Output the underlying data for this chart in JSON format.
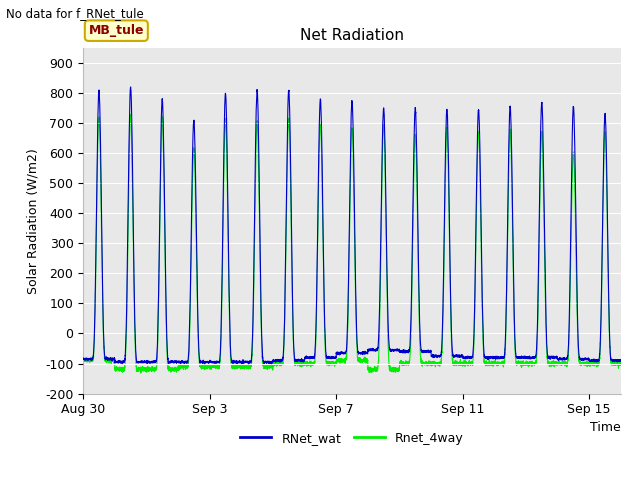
{
  "title": "Net Radiation",
  "no_data_text": "No data for f_RNet_tule",
  "xlabel": "Time",
  "ylabel": "Solar Radiation (W/m2)",
  "ylim": [
    -200,
    950
  ],
  "yticks": [
    -200,
    -100,
    0,
    100,
    200,
    300,
    400,
    500,
    600,
    700,
    800,
    900
  ],
  "bg_color": "#e8e8e8",
  "fig_color": "#ffffff",
  "line1_color": "#0000cc",
  "line2_color": "#00ee00",
  "legend_entries": [
    "RNet_wat",
    "Rnet_4way"
  ],
  "mb_label": "MB_tule",
  "mb_label_color": "#8b0000",
  "mb_box_color": "#ffffcc",
  "mb_box_edge": "#ccaa00",
  "num_days": 17,
  "x_tick_labels": [
    "Aug 30",
    "Sep 3",
    "Sep 7",
    "Sep 11",
    "Sep 15"
  ],
  "x_tick_positions": [
    0,
    4,
    8,
    12,
    16
  ],
  "day_peaks_blue": [
    810,
    820,
    780,
    710,
    800,
    810,
    810,
    780,
    775,
    750,
    750,
    745,
    745,
    755,
    770,
    755,
    730
  ],
  "day_peaks_green": [
    720,
    725,
    720,
    615,
    710,
    700,
    715,
    695,
    680,
    700,
    660,
    680,
    670,
    675,
    670,
    600,
    670
  ],
  "day_troughs_blue": [
    -85,
    -95,
    -95,
    -95,
    -95,
    -95,
    -90,
    -80,
    -65,
    -55,
    -60,
    -75,
    -80,
    -80,
    -80,
    -85,
    -90
  ],
  "day_troughs_green": [
    -90,
    -120,
    -120,
    -110,
    -110,
    -110,
    -100,
    -100,
    -90,
    -120,
    -100,
    -100,
    -100,
    -100,
    -100,
    -100,
    -100
  ]
}
